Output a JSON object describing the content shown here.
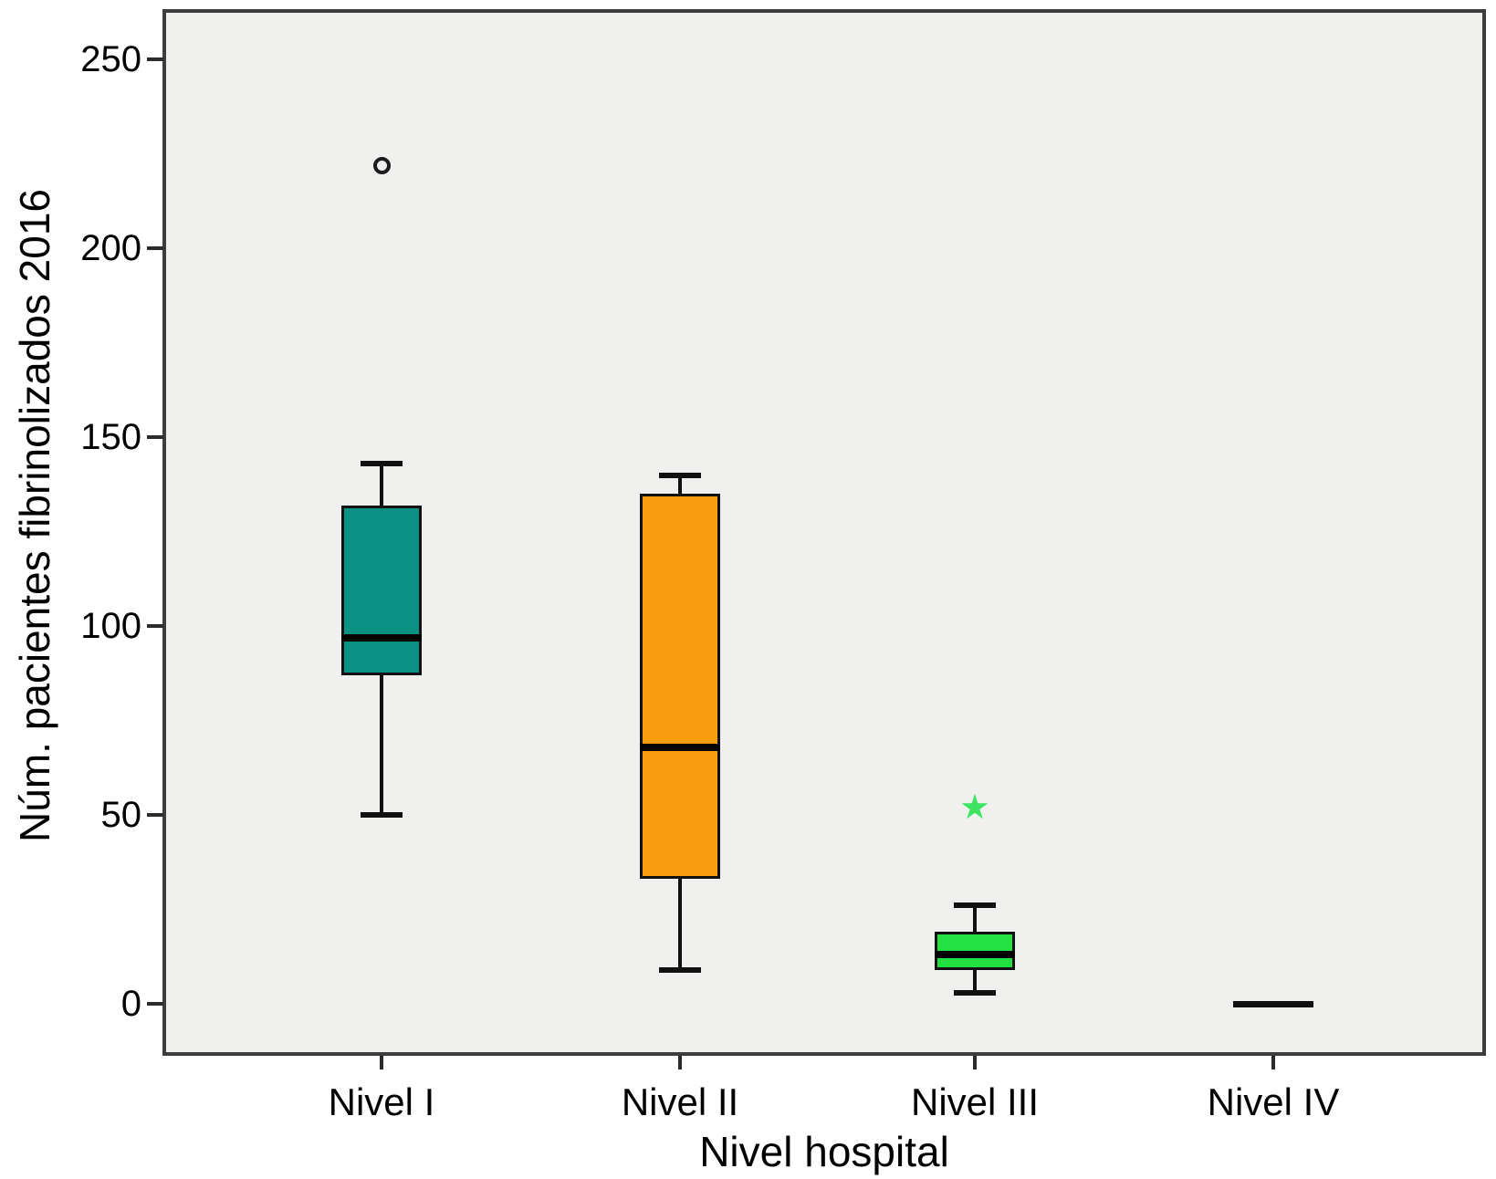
{
  "chart_data": {
    "type": "boxplot",
    "title": "",
    "xlabel": "Nivel hospital",
    "ylabel": "Núm. pacientes fibrinolizados 2016",
    "ylim": [
      -14,
      263
    ],
    "y_ticks": [
      0,
      50,
      100,
      150,
      200,
      250
    ],
    "grid": false,
    "plot_background": "#f0f0ef",
    "categories": [
      "Nivel I",
      "Nivel II",
      "Nivel III",
      "Nivel IV"
    ],
    "series": [
      {
        "category": "Nivel I",
        "min": 50,
        "q1": 87,
        "median": 97,
        "q3": 132,
        "max": 143,
        "outliers": [
          {
            "value": 222,
            "marker": "circle"
          }
        ],
        "color": "#0a9184"
      },
      {
        "category": "Nivel II",
        "min": 9,
        "q1": 33,
        "median": 68,
        "q3": 135,
        "max": 140,
        "outliers": [],
        "color": "#fa9d0e"
      },
      {
        "category": "Nivel III",
        "min": 3,
        "q1": 9,
        "median": 13,
        "q3": 19,
        "max": 26,
        "outliers": [
          {
            "value": 52,
            "marker": "star"
          }
        ],
        "color": "#22e243"
      },
      {
        "category": "Nivel IV",
        "min": 0,
        "q1": 0,
        "median": 0,
        "q3": 0,
        "max": 0,
        "outliers": [],
        "color": "#111111",
        "flat": true
      }
    ],
    "outlier_star_color": "#3ce45f"
  }
}
